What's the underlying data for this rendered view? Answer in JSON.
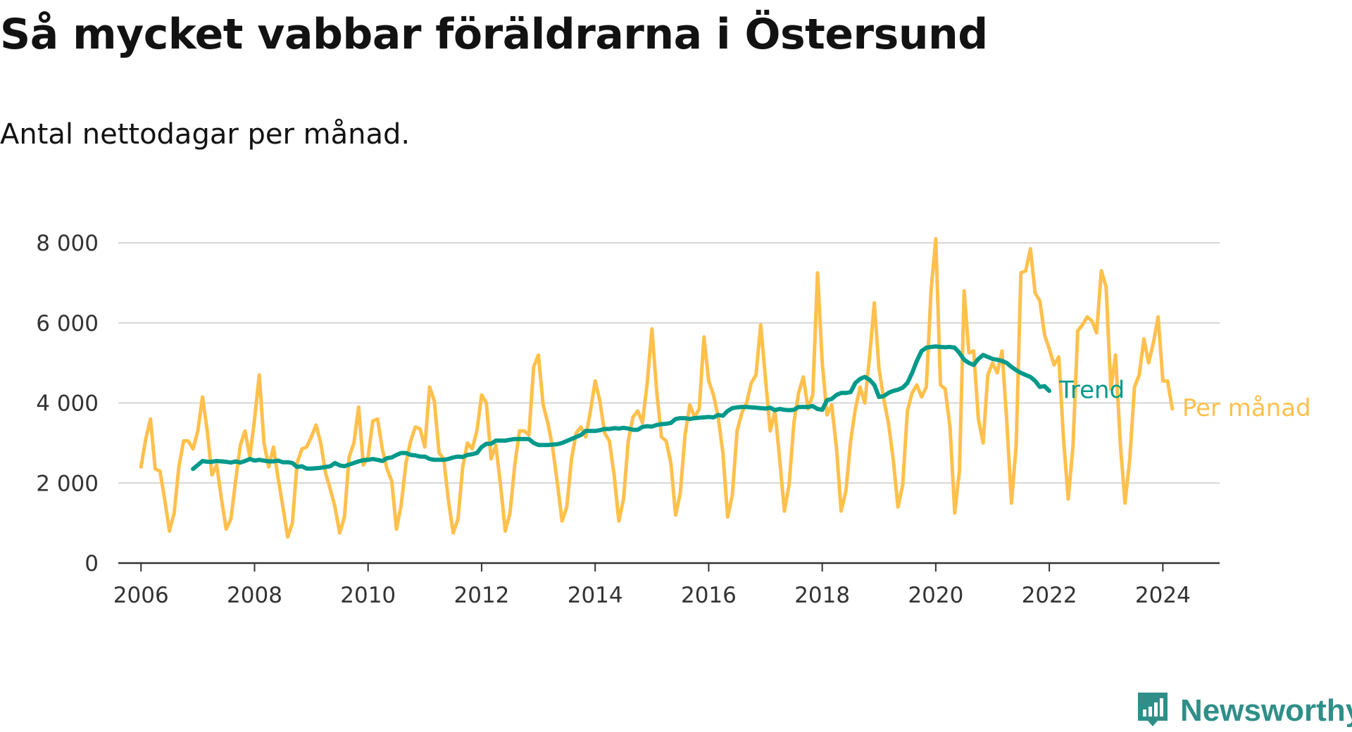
{
  "header": {
    "title": "Så mycket vabbar föräldrarna i Östersund",
    "subtitle": "Antal nettodagar per månad."
  },
  "branding": {
    "name": "Newsworthy",
    "icon": "newsworthy-logo-icon",
    "color": "#2f8f88"
  },
  "colors": {
    "monthly": "#ffc04c",
    "trend": "#00998a",
    "grid": "#d6d6d6",
    "axis": "#333333"
  },
  "chart_data": {
    "type": "line",
    "title": "Så mycket vabbar föräldrarna i Östersund",
    "subtitle": "Antal nettodagar per månad.",
    "xlabel": "",
    "ylabel": "",
    "xlim": [
      2005.6,
      2025.0
    ],
    "ylim": [
      0,
      8000
    ],
    "grid": true,
    "x_ticks": [
      {
        "value": 2006,
        "label": "2006"
      },
      {
        "value": 2008,
        "label": "2008"
      },
      {
        "value": 2010,
        "label": "2010"
      },
      {
        "value": 2012,
        "label": "2012"
      },
      {
        "value": 2014,
        "label": "2014"
      },
      {
        "value": 2016,
        "label": "2016"
      },
      {
        "value": 2018,
        "label": "2018"
      },
      {
        "value": 2020,
        "label": "2020"
      },
      {
        "value": 2022,
        "label": "2022"
      },
      {
        "value": 2024,
        "label": "2024"
      }
    ],
    "y_ticks": [
      {
        "value": 0,
        "label": "0"
      },
      {
        "value": 2000,
        "label": "2 000"
      },
      {
        "value": 4000,
        "label": "4 000"
      },
      {
        "value": 6000,
        "label": "6 000"
      },
      {
        "value": 8000,
        "label": "8 000"
      }
    ],
    "legend": "end-of-line labels",
    "series": [
      {
        "name": "Per månad",
        "color": "#ffc04c",
        "start_year": 2006,
        "start_month": 1,
        "values": [
          2400,
          3100,
          3600,
          2350,
          2300,
          1600,
          800,
          1250,
          2400,
          3050,
          3050,
          2850,
          3300,
          4150,
          3300,
          2200,
          2450,
          1600,
          850,
          1100,
          2050,
          2950,
          3300,
          2650,
          3600,
          4700,
          3000,
          2400,
          2900,
          2100,
          1400,
          650,
          1000,
          2500,
          2850,
          2900,
          3150,
          3450,
          3000,
          2250,
          1850,
          1400,
          750,
          1150,
          2650,
          3000,
          3900,
          2450,
          2650,
          3550,
          3600,
          2850,
          2350,
          2050,
          850,
          1450,
          2500,
          3050,
          3400,
          3350,
          2900,
          4400,
          4050,
          2750,
          2600,
          1550,
          750,
          1100,
          2400,
          3000,
          2850,
          3300,
          4200,
          4000,
          2600,
          2950,
          1950,
          800,
          1250,
          2450,
          3300,
          3300,
          3200,
          4900,
          5200,
          3950,
          3500,
          2900,
          2000,
          1050,
          1400,
          2600,
          3250,
          3400,
          3150,
          3800,
          4550,
          4050,
          3250,
          3050,
          2200,
          1050,
          1600,
          3050,
          3650,
          3800,
          3500,
          4500,
          5850,
          4300,
          3150,
          3050,
          2500,
          1200,
          1750,
          3200,
          3950,
          3650,
          3850,
          5650,
          4550,
          4200,
          3650,
          2750,
          1150,
          1700,
          3300,
          3750,
          4000,
          4500,
          4700,
          5950,
          4600,
          3300,
          3800,
          2600,
          1300,
          1950,
          3500,
          4250,
          4650,
          3850,
          4200,
          7250,
          5000,
          3700,
          3950,
          2900,
          1300,
          1800,
          3050,
          3850,
          4400,
          4000,
          5150,
          6500,
          4850,
          4100,
          3500,
          2600,
          1400,
          1950,
          3800,
          4250,
          4450,
          4150,
          4400,
          6800,
          8100,
          4450,
          4350,
          3400,
          1250,
          2300,
          6800,
          5250,
          5300,
          3600,
          3000,
          4700,
          5000,
          4750,
          5300,
          3550,
          1500,
          2950,
          7250,
          7300,
          7850,
          6750,
          6550,
          5700,
          5350,
          4950,
          5150,
          3100,
          1600,
          2900,
          5800,
          5950,
          6150,
          6050,
          5750,
          7300,
          6900,
          4350,
          5200,
          3000,
          1500,
          2600,
          4400,
          4700,
          5600,
          5000,
          5500,
          6150,
          4550,
          4550,
          3850
        ]
      },
      {
        "name": "Trend",
        "color": "#00998a",
        "start_year": 2006,
        "start_month": 12,
        "values": [
          2350,
          2450,
          2550,
          2530,
          2530,
          2550,
          2540,
          2530,
          2510,
          2540,
          2510,
          2550,
          2600,
          2560,
          2580,
          2560,
          2540,
          2540,
          2560,
          2520,
          2520,
          2500,
          2400,
          2420,
          2360,
          2360,
          2370,
          2380,
          2400,
          2420,
          2500,
          2440,
          2420,
          2460,
          2500,
          2540,
          2570,
          2580,
          2600,
          2580,
          2550,
          2620,
          2640,
          2700,
          2750,
          2750,
          2700,
          2690,
          2660,
          2660,
          2600,
          2580,
          2580,
          2580,
          2600,
          2640,
          2660,
          2650,
          2700,
          2720,
          2750,
          2900,
          2980,
          2980,
          3060,
          3060,
          3060,
          3080,
          3100,
          3100,
          3100,
          3100,
          3000,
          2950,
          2950,
          2950,
          2960,
          2970,
          3000,
          3050,
          3100,
          3150,
          3200,
          3300,
          3300,
          3300,
          3320,
          3350,
          3350,
          3370,
          3360,
          3380,
          3360,
          3330,
          3330,
          3400,
          3420,
          3410,
          3450,
          3470,
          3480,
          3500,
          3600,
          3620,
          3620,
          3600,
          3620,
          3630,
          3640,
          3650,
          3640,
          3700,
          3680,
          3800,
          3870,
          3890,
          3900,
          3900,
          3890,
          3880,
          3870,
          3860,
          3880,
          3820,
          3850,
          3830,
          3820,
          3830,
          3900,
          3900,
          3900,
          3920,
          3850,
          3830,
          4070,
          4100,
          4200,
          4250,
          4250,
          4270,
          4500,
          4600,
          4650,
          4580,
          4450,
          4150,
          4170,
          4250,
          4300,
          4330,
          4380,
          4500,
          4750,
          5050,
          5300,
          5380,
          5400,
          5410,
          5400,
          5390,
          5400,
          5380,
          5250,
          5080,
          5000,
          4950,
          5100,
          5200,
          5150,
          5100,
          5080,
          5050,
          5000,
          4900,
          4820,
          4750,
          4700,
          4650,
          4550,
          4400,
          4420,
          4300
        ]
      }
    ]
  }
}
